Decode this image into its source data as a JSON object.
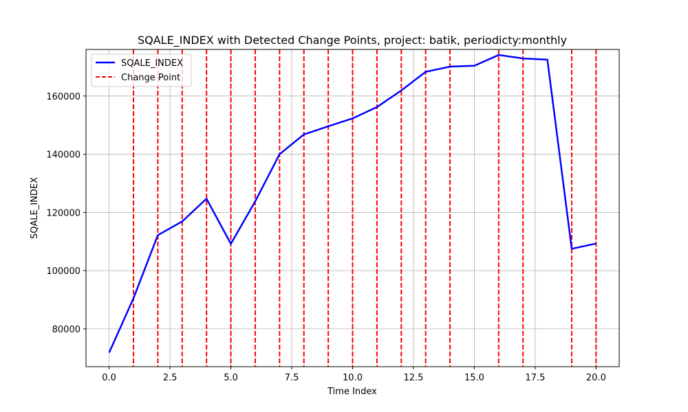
{
  "chart_data": {
    "type": "line",
    "title": "SQALE_INDEX with Detected Change Points, project: batik, periodicty:monthly",
    "xlabel": "Time Index",
    "ylabel": "SQALE_INDEX",
    "xlim": [
      -0.95,
      20.95
    ],
    "ylim": [
      67000,
      176000
    ],
    "x_ticks": [
      0,
      2.5,
      5,
      7.5,
      10,
      12.5,
      15,
      17.5,
      20
    ],
    "x_tick_labels": [
      "0.0",
      "2.5",
      "5.0",
      "7.5",
      "10.0",
      "12.5",
      "15.0",
      "17.5",
      "20.0"
    ],
    "y_ticks": [
      80000,
      100000,
      120000,
      140000,
      160000
    ],
    "y_tick_labels": [
      "80000",
      "100000",
      "120000",
      "140000",
      "160000"
    ],
    "grid": true,
    "legend_position": "top-left",
    "series": [
      {
        "name": "SQALE_INDEX",
        "color": "#0000ff",
        "style": "solid",
        "x": [
          0,
          1,
          2,
          3,
          4,
          5,
          6,
          7,
          8,
          9,
          10,
          11,
          12,
          13,
          14,
          15,
          16,
          17,
          18,
          19,
          20
        ],
        "values": [
          71800,
          90500,
          112200,
          116900,
          124700,
          109200,
          123800,
          140000,
          146800,
          149600,
          152300,
          156200,
          161900,
          168300,
          170100,
          170400,
          174100,
          172900,
          172500,
          107500,
          109300
        ]
      }
    ],
    "change_points": {
      "name": "Change Point",
      "color": "#ff0000",
      "style": "dashed",
      "x": [
        1,
        2,
        3,
        4,
        5,
        6,
        7,
        8,
        9,
        10,
        11,
        12,
        13,
        14,
        16,
        17,
        19,
        20
      ]
    }
  }
}
